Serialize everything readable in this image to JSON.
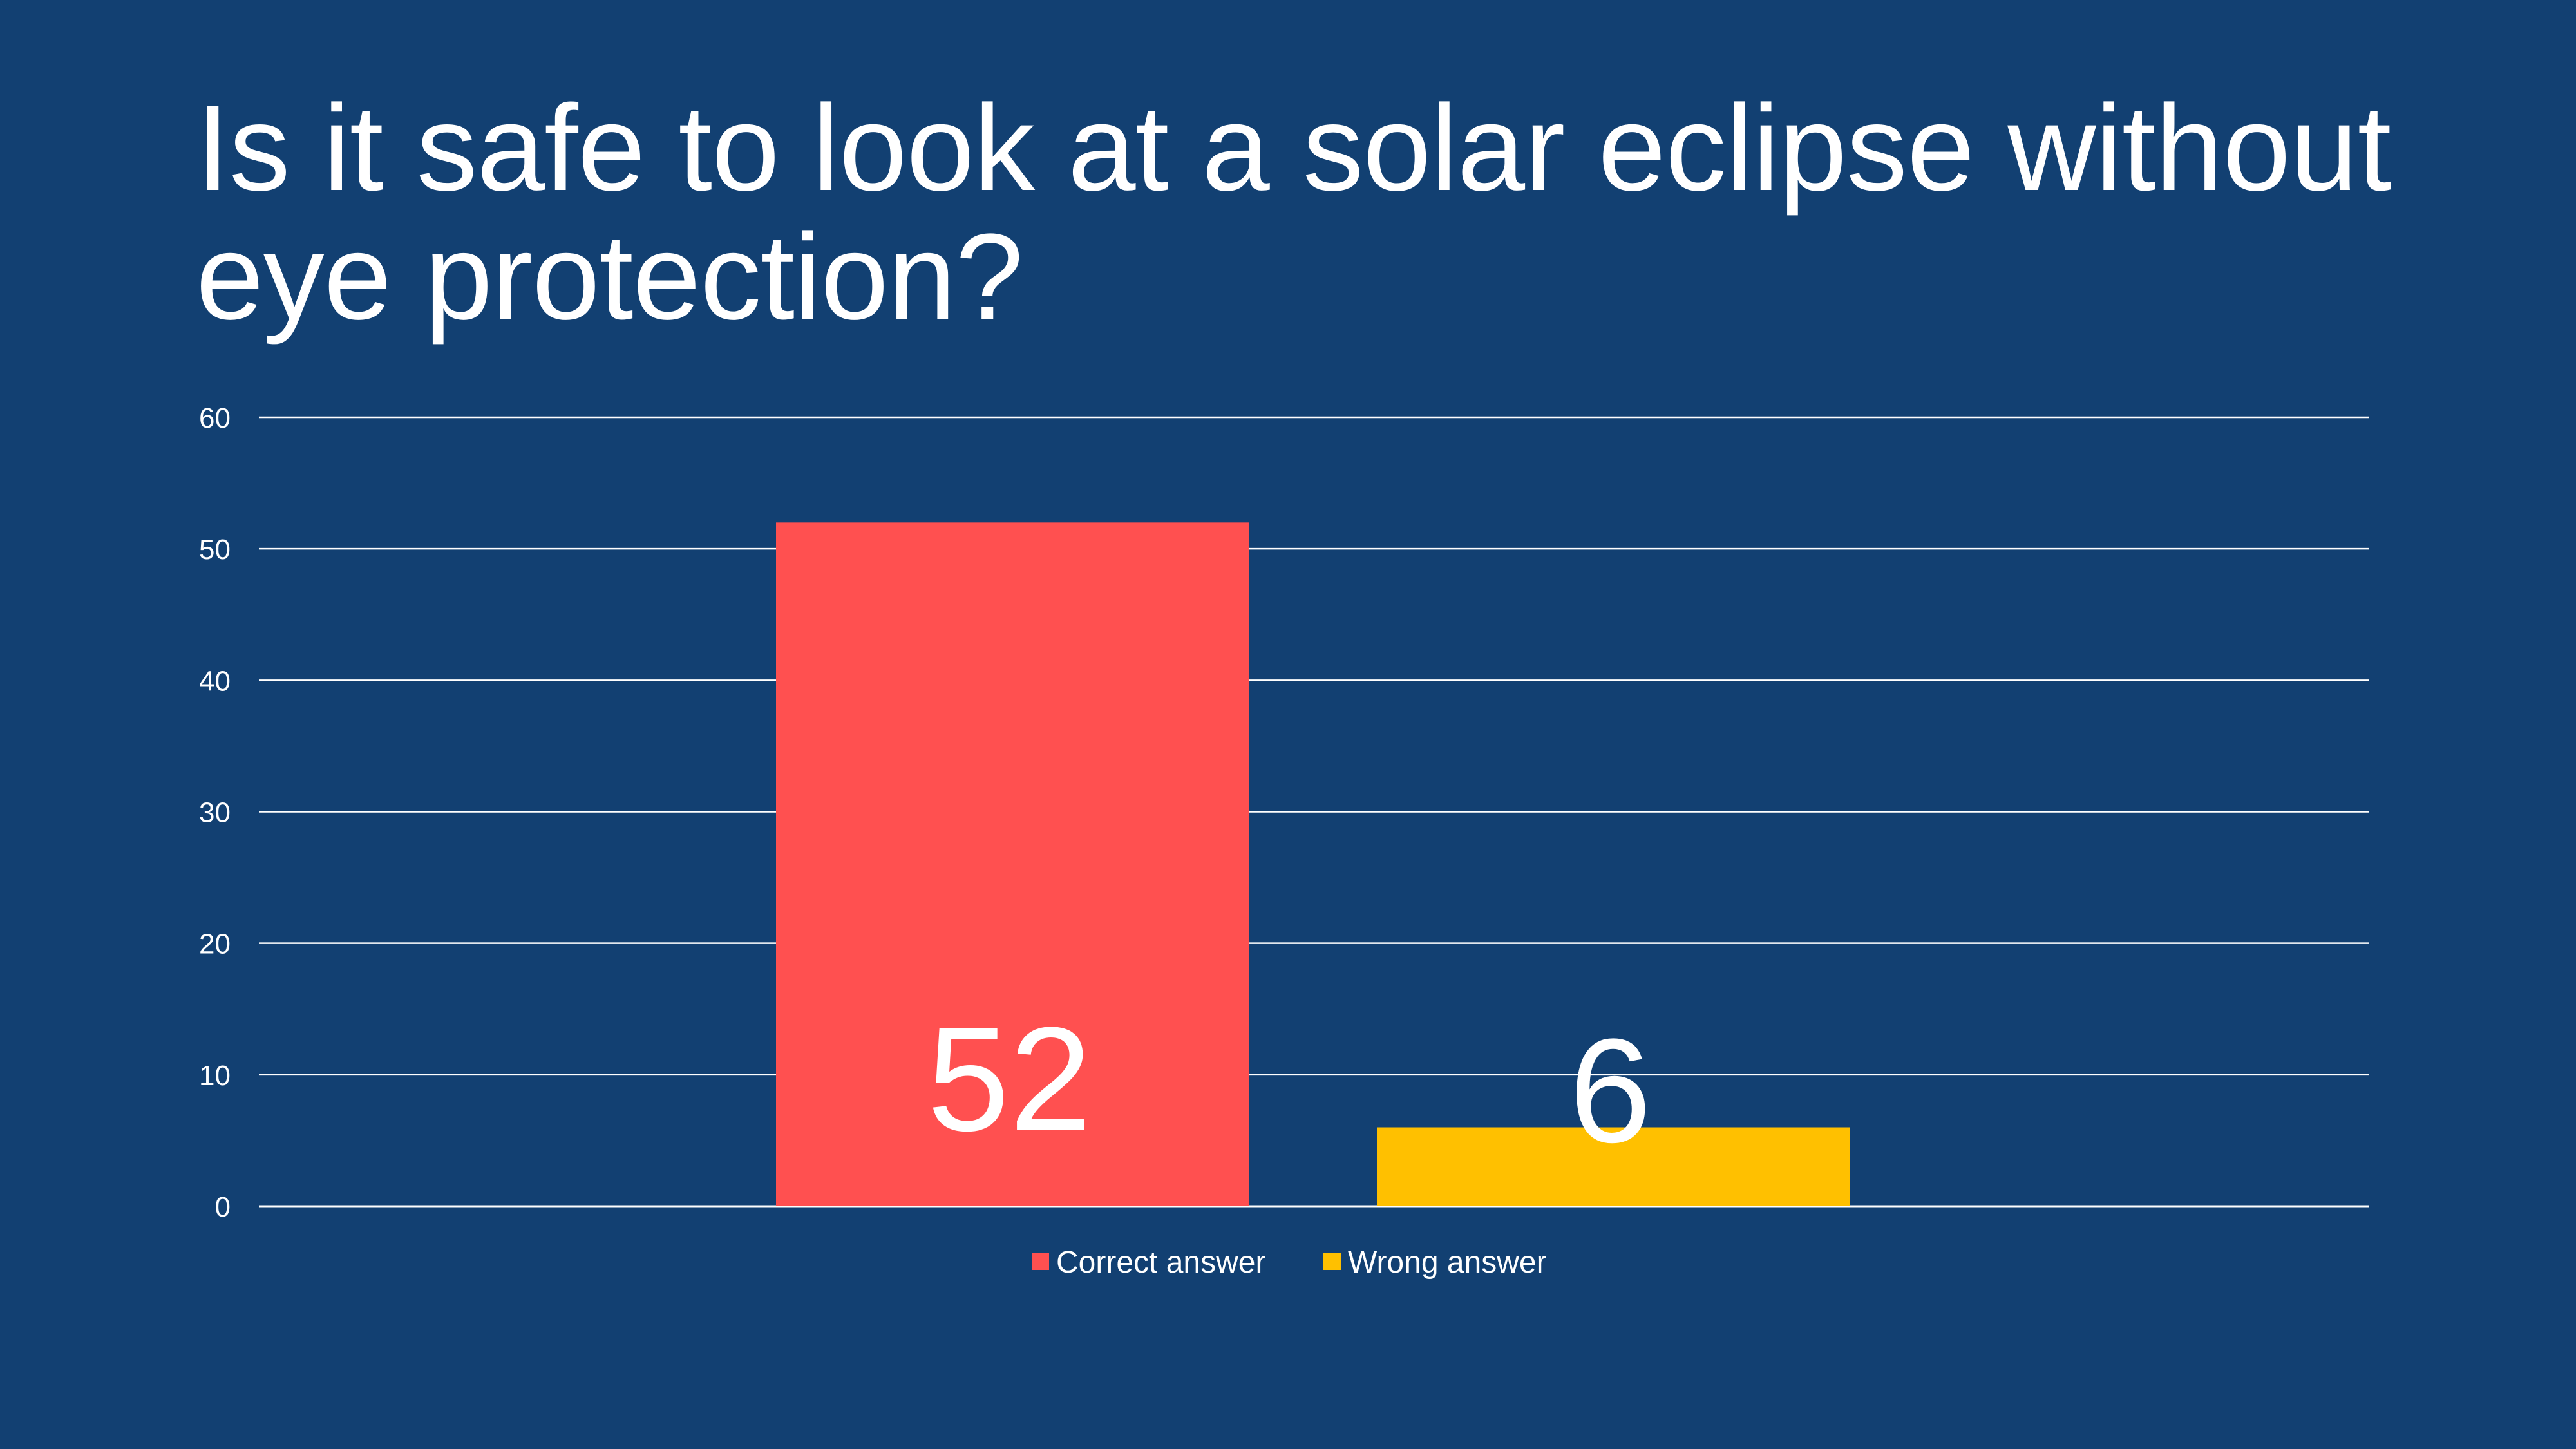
{
  "slide": {
    "background_color": "#124072",
    "title_line1": "Is it safe to look at a solar eclipse without",
    "title_line2": "eye protection?"
  },
  "chart_data": {
    "type": "bar",
    "title": "",
    "xlabel": "",
    "ylabel": "",
    "ylim": [
      0,
      60
    ],
    "yticks": [
      0,
      10,
      20,
      30,
      40,
      50,
      60
    ],
    "grid": true,
    "legend_position": "bottom",
    "series": [
      {
        "name": "Correct answer",
        "values": [
          52
        ],
        "color": "#FF5050"
      },
      {
        "name": "Wrong answer",
        "values": [
          6
        ],
        "color": "#FFC000"
      }
    ],
    "data_labels": [
      "52",
      "6"
    ]
  }
}
